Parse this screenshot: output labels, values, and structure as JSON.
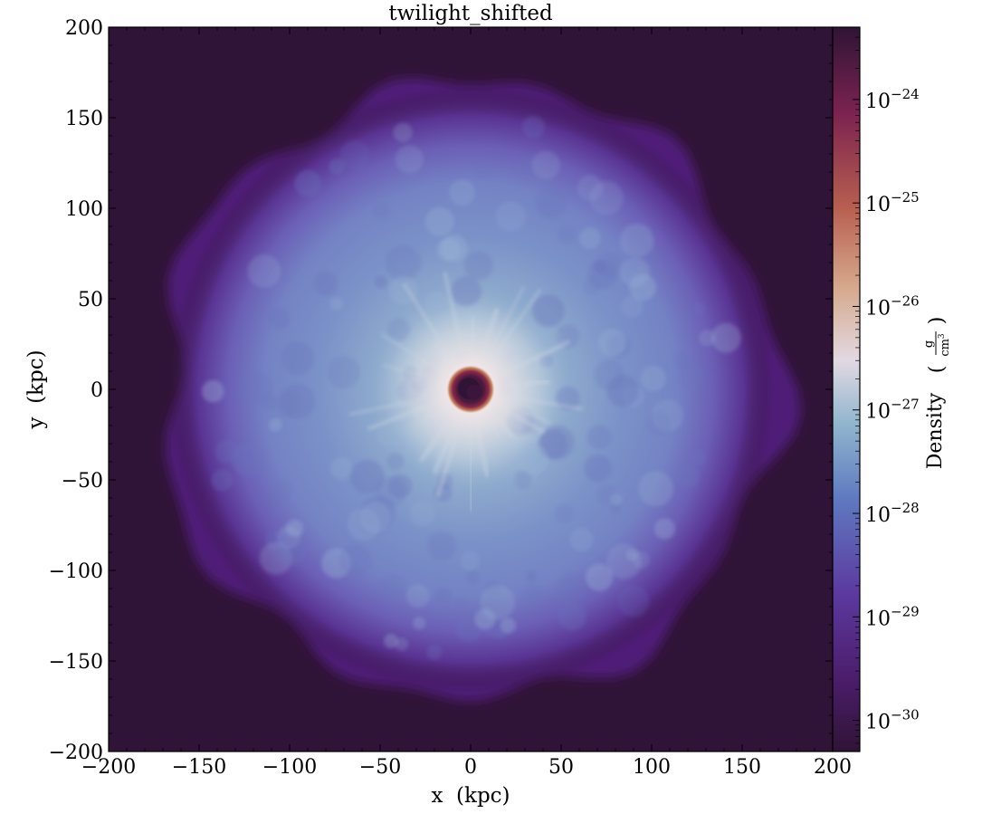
{
  "chart_data": {
    "type": "heatmap",
    "title": "twilight_shifted",
    "xlabel": "x  (kpc)",
    "ylabel": "y  (kpc)",
    "xlim": [
      -200,
      200
    ],
    "ylim": [
      -200,
      200
    ],
    "xticks": [
      -200,
      -150,
      -100,
      -50,
      0,
      50,
      100,
      150,
      200
    ],
    "yticks": [
      -200,
      -150,
      -100,
      -50,
      0,
      50,
      100,
      150,
      200
    ],
    "xtick_labels": [
      "−200",
      "−150",
      "−100",
      "−50",
      "0",
      "50",
      "100",
      "150",
      "200"
    ],
    "ytick_labels": [
      "−200",
      "−150",
      "−100",
      "−50",
      "0",
      "50",
      "100",
      "150",
      "200"
    ],
    "colormap": "twilight_shifted",
    "colorbar": {
      "label": "Density",
      "unit_numerator": "g",
      "unit_denominator": "cm",
      "unit_denominator_exp": "3",
      "scale": "log",
      "range": [
        5e-31,
        5e-24
      ],
      "tick_base": "10",
      "ticks": [
        {
          "value": 1e-30,
          "exp": "−30"
        },
        {
          "value": 1e-29,
          "exp": "−29"
        },
        {
          "value": 1e-28,
          "exp": "−28"
        },
        {
          "value": 1e-27,
          "exp": "−27"
        },
        {
          "value": 1e-26,
          "exp": "−26"
        },
        {
          "value": 1e-25,
          "exp": "−25"
        },
        {
          "value": 1e-24,
          "exp": "−24"
        }
      ]
    },
    "field": {
      "description_free": true,
      "background_density": 7e-31,
      "halo_radius_kpc": 170,
      "core_radius_kpc": 7,
      "core_density": 3e-24,
      "center": [
        0,
        0
      ]
    },
    "colors": {
      "low": "#301437",
      "mid_purple": "#6a3fa8",
      "blue": "#6a8fc6",
      "light": "#e2d9e2",
      "orange": "#c88a5f",
      "red": "#8a2848",
      "high": "#2f1436"
    }
  }
}
